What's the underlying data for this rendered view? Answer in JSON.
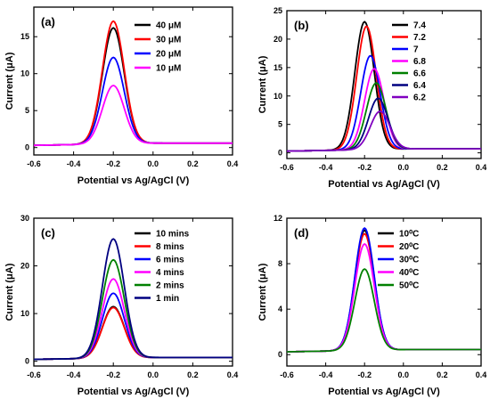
{
  "chart_data": [
    {
      "type": "line",
      "panel_label": "(a)",
      "xlabel": "Potential vs Ag/AgCl (V)",
      "ylabel": "Current (μA)",
      "xlim": [
        -0.6,
        0.4
      ],
      "ylim": [
        -1,
        19
      ],
      "xticks": [
        "-0.6",
        "-0.4",
        "-0.2",
        "0.0",
        "0.2",
        "0.4"
      ],
      "yticks": [
        "0",
        "5",
        "10",
        "15"
      ],
      "legend_position": "top-right",
      "series": [
        {
          "name": "40 μM",
          "color": "#000000",
          "peak_x": -0.2,
          "peak_y": 16.0,
          "width": 0.055,
          "baseline_left": 0.3,
          "baseline_right": 0.6
        },
        {
          "name": "30 μM",
          "color": "#ff0000",
          "peak_x": -0.2,
          "peak_y": 16.9,
          "width": 0.055,
          "baseline_left": 0.3,
          "baseline_right": 0.6
        },
        {
          "name": "20 μM",
          "color": "#0000ff",
          "peak_x": -0.2,
          "peak_y": 12.0,
          "width": 0.055,
          "baseline_left": 0.3,
          "baseline_right": 0.6
        },
        {
          "name": "10 μM",
          "color": "#ff00ff",
          "peak_x": -0.2,
          "peak_y": 8.2,
          "width": 0.055,
          "baseline_left": 0.3,
          "baseline_right": 0.6
        }
      ]
    },
    {
      "type": "line",
      "panel_label": "(b)",
      "xlabel": "Potential vs Ag/AgCl (V)",
      "ylabel": "Current (μA)",
      "xlim": [
        -0.6,
        0.4
      ],
      "ylim": [
        -1,
        25
      ],
      "xticks": [
        "-0.6",
        "-0.4",
        "-0.2",
        "0.0",
        "0.2",
        "0.4"
      ],
      "yticks": [
        "0",
        "5",
        "10",
        "15",
        "20",
        "25"
      ],
      "legend_position": "top-right",
      "series": [
        {
          "name": "7.4",
          "color": "#000000",
          "peak_x": -0.2,
          "peak_y": 22.8,
          "width": 0.05,
          "baseline_left": 0.3,
          "baseline_right": 0.7
        },
        {
          "name": "7.2",
          "color": "#ff0000",
          "peak_x": -0.19,
          "peak_y": 22.0,
          "width": 0.05,
          "baseline_left": 0.3,
          "baseline_right": 0.7
        },
        {
          "name": "7",
          "color": "#0000ff",
          "peak_x": -0.17,
          "peak_y": 16.8,
          "width": 0.05,
          "baseline_left": 0.3,
          "baseline_right": 0.7
        },
        {
          "name": "6.8",
          "color": "#ff00ff",
          "peak_x": -0.15,
          "peak_y": 14.5,
          "width": 0.05,
          "baseline_left": 0.3,
          "baseline_right": 0.7
        },
        {
          "name": "6.6",
          "color": "#008000",
          "peak_x": -0.14,
          "peak_y": 12.0,
          "width": 0.05,
          "baseline_left": 0.3,
          "baseline_right": 0.7
        },
        {
          "name": "6.4",
          "color": "#000080",
          "peak_x": -0.13,
          "peak_y": 9.3,
          "width": 0.05,
          "baseline_left": 0.3,
          "baseline_right": 0.7
        },
        {
          "name": "6.2",
          "color": "#8000c0",
          "peak_x": -0.12,
          "peak_y": 7.0,
          "width": 0.05,
          "baseline_left": 0.3,
          "baseline_right": 0.7
        }
      ]
    },
    {
      "type": "line",
      "panel_label": "(c)",
      "xlabel": "Potential vs Ag/AgCl (V)",
      "ylabel": "Current (μA)",
      "xlim": [
        -0.6,
        0.4
      ],
      "ylim": [
        -1,
        30
      ],
      "xticks": [
        "-0.6",
        "-0.4",
        "-0.2",
        "0.0",
        "0.2",
        "0.4"
      ],
      "yticks": [
        "0",
        "10",
        "20",
        "30"
      ],
      "legend_position": "top-right",
      "series": [
        {
          "name": "10 mins",
          "color": "#000000",
          "peak_x": -0.2,
          "peak_y": 11.2,
          "width": 0.055,
          "baseline_left": 0.4,
          "baseline_right": 0.8
        },
        {
          "name": "8 mins",
          "color": "#ff0000",
          "peak_x": -0.2,
          "peak_y": 11.0,
          "width": 0.055,
          "baseline_left": 0.4,
          "baseline_right": 0.8
        },
        {
          "name": "6 mins",
          "color": "#0000ff",
          "peak_x": -0.2,
          "peak_y": 14.0,
          "width": 0.055,
          "baseline_left": 0.4,
          "baseline_right": 0.8
        },
        {
          "name": "4 mins",
          "color": "#ff00ff",
          "peak_x": -0.2,
          "peak_y": 17.0,
          "width": 0.055,
          "baseline_left": 0.4,
          "baseline_right": 0.8
        },
        {
          "name": "2 mins",
          "color": "#008000",
          "peak_x": -0.2,
          "peak_y": 21.0,
          "width": 0.055,
          "baseline_left": 0.4,
          "baseline_right": 0.8
        },
        {
          "name": "1 min",
          "color": "#000080",
          "peak_x": -0.2,
          "peak_y": 25.4,
          "width": 0.055,
          "baseline_left": 0.4,
          "baseline_right": 0.8
        }
      ]
    },
    {
      "type": "line",
      "panel_label": "(d)",
      "xlabel": "Potential vs Ag/AgCl (V)",
      "ylabel": "Current (μA)",
      "xlim": [
        -0.6,
        0.4
      ],
      "ylim": [
        -1,
        12
      ],
      "xticks": [
        "-0.6",
        "-0.4",
        "-0.2",
        "0.0",
        "0.2",
        "0.4"
      ],
      "yticks": [
        "0",
        "4",
        "8",
        "12"
      ],
      "legend_position": "top-right",
      "series": [
        {
          "name": "10⁰C",
          "color": "#000000",
          "peak_x": -0.2,
          "peak_y": 10.8,
          "width": 0.05,
          "baseline_left": 0.25,
          "baseline_right": 0.45
        },
        {
          "name": "20⁰C",
          "color": "#ff0000",
          "peak_x": -0.2,
          "peak_y": 10.5,
          "width": 0.05,
          "baseline_left": 0.25,
          "baseline_right": 0.45
        },
        {
          "name": "30⁰C",
          "color": "#0000ff",
          "peak_x": -0.2,
          "peak_y": 11.0,
          "width": 0.05,
          "baseline_left": 0.25,
          "baseline_right": 0.45
        },
        {
          "name": "40⁰C",
          "color": "#ff00ff",
          "peak_x": -0.2,
          "peak_y": 9.6,
          "width": 0.05,
          "baseline_left": 0.25,
          "baseline_right": 0.45
        },
        {
          "name": "50⁰C",
          "color": "#008000",
          "peak_x": -0.2,
          "peak_y": 7.4,
          "width": 0.05,
          "baseline_left": 0.25,
          "baseline_right": 0.45
        }
      ]
    }
  ]
}
